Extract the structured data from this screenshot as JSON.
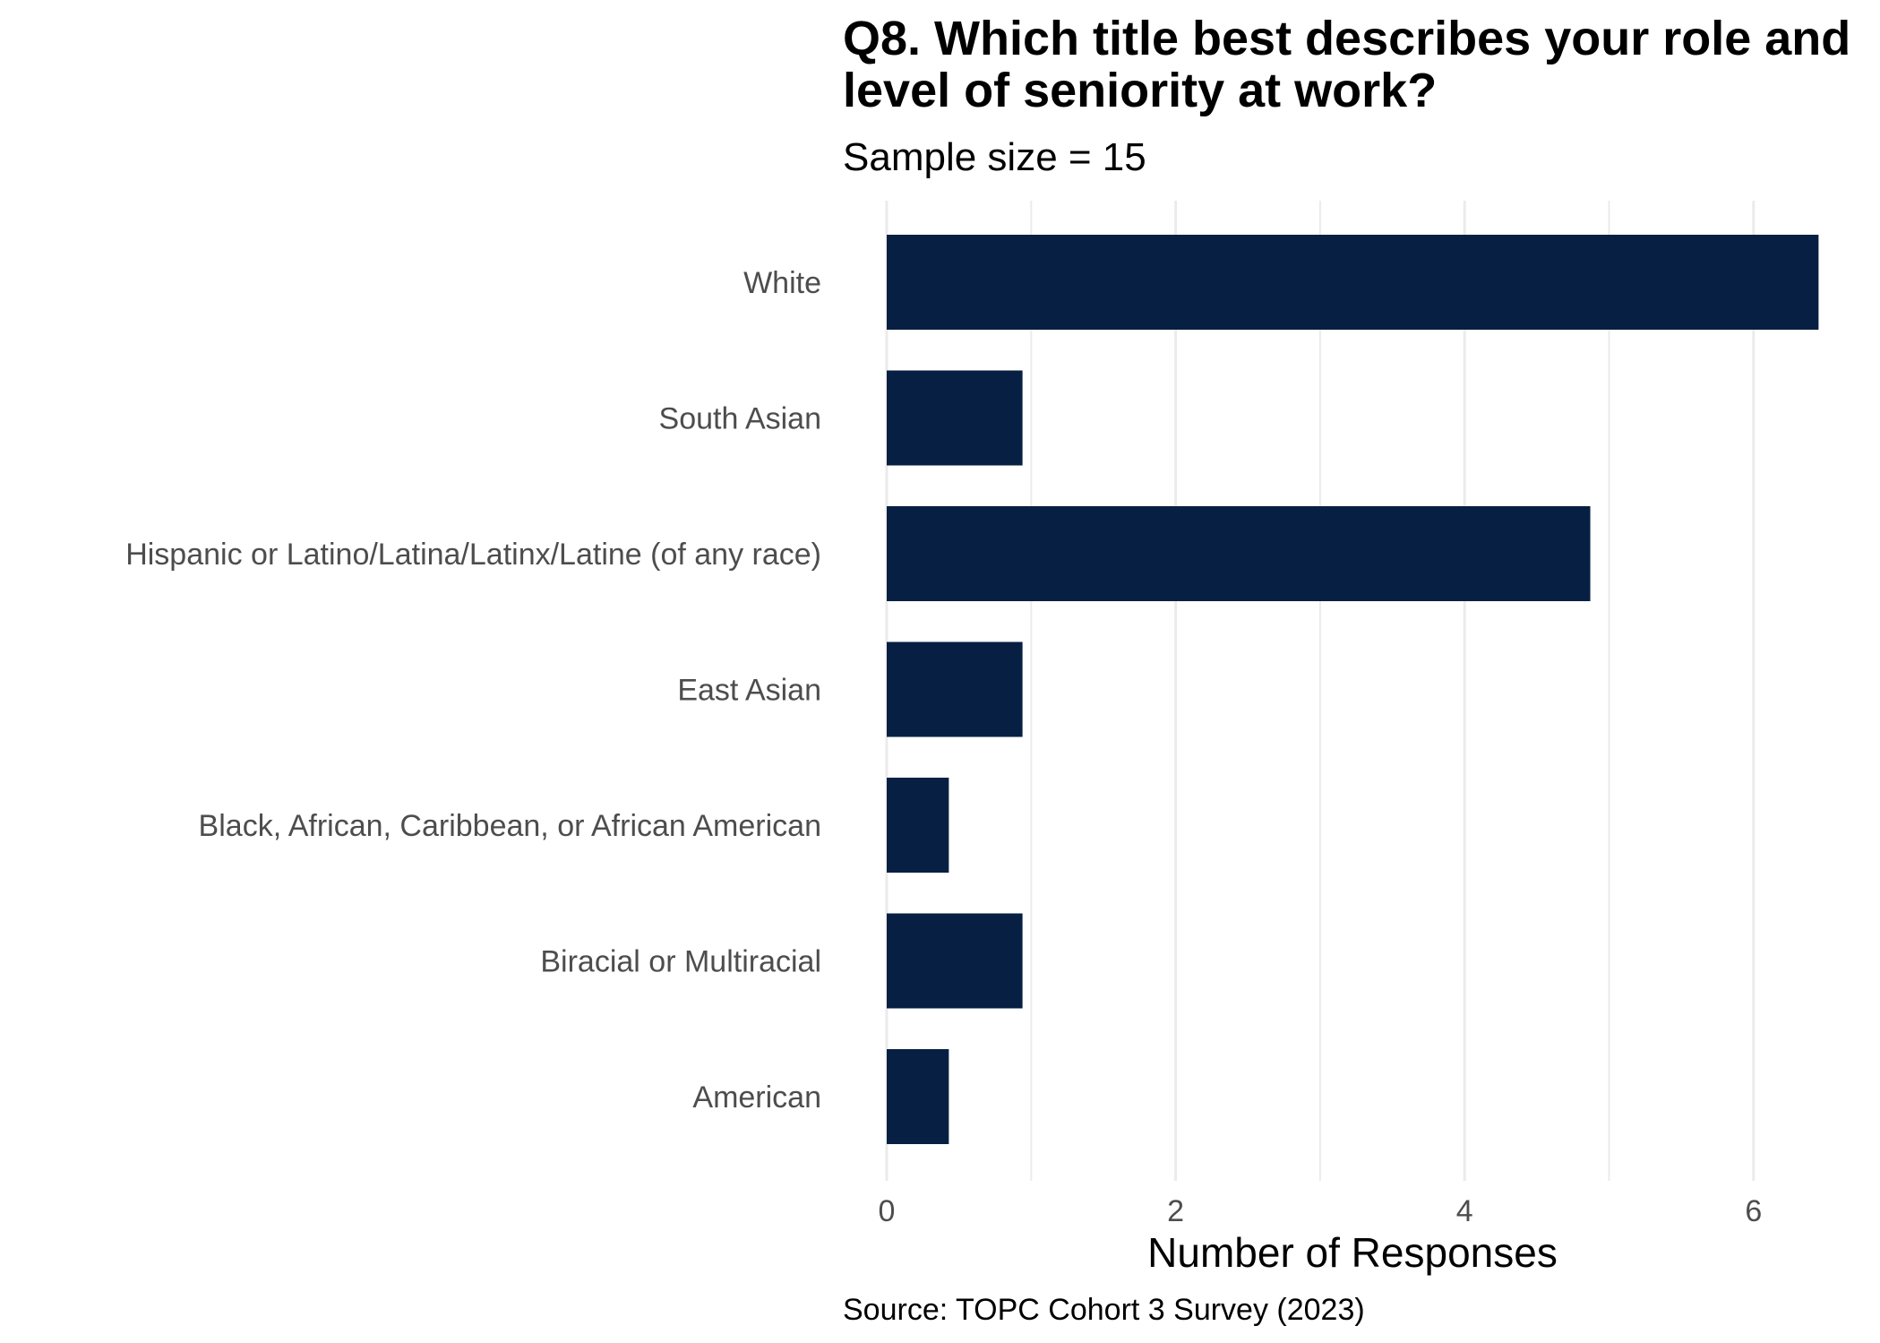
{
  "chart_data": {
    "type": "bar",
    "orientation": "horizontal",
    "title": "Q8. Which title best describes your role and level of seniority at work?",
    "subtitle": "Sample size = 15",
    "caption": "Source: TOPC Cohort 3 Survey (2023)",
    "xlabel": "Number of Responses",
    "ylabel": "",
    "categories": [
      "White",
      "South Asian",
      "Hispanic or Latino/Latina/Latinx/Latine (of any race)",
      "East Asian",
      "Black, African, Caribbean, or African American",
      "Biracial or Multiracial",
      "American"
    ],
    "values": [
      6.45,
      0.94,
      4.87,
      0.94,
      0.43,
      0.94,
      0.43
    ],
    "xlim": [
      0,
      6.5
    ],
    "xticks": [
      0,
      2,
      4,
      6
    ],
    "bar_color": "#061F42",
    "grid": true,
    "legend": "none"
  }
}
